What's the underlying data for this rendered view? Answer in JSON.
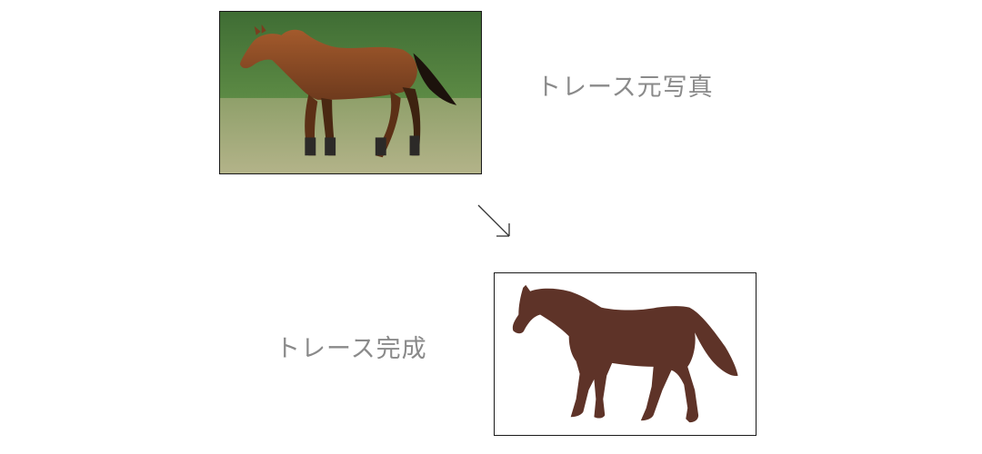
{
  "source_photo": {
    "caption": "トレース元写真",
    "image_icon": "horse-photo"
  },
  "arrow_icon": "diagonal-arrow-down-right",
  "traced_result": {
    "caption": "トレース完成",
    "image_icon": "horse-silhouette"
  },
  "colors": {
    "frame_border": "#1a1a1a",
    "caption_text": "#8a8a8a",
    "silhouette_fill": "#5e3328",
    "grass_background": "#4f7e3c",
    "field": "#a4ae78",
    "horse_coat": "#8a4a26"
  }
}
